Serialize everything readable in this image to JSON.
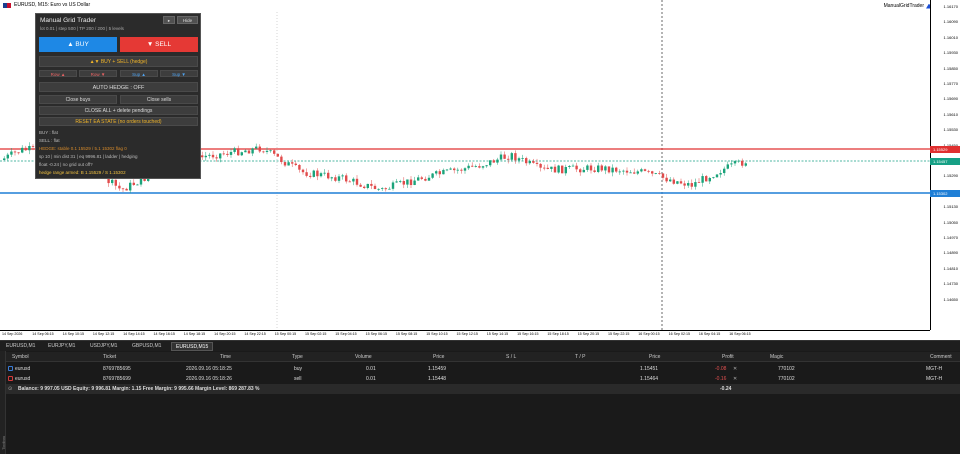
{
  "chart": {
    "symbol_title": "EURUSD, M15: Euro vs US Dollar",
    "ea_name": "ManualGridTrader",
    "price_ticks": [
      "1.16170",
      "1.16090",
      "1.16010",
      "1.15930",
      "1.15850",
      "1.15770",
      "1.15690",
      "1.15610",
      "1.15530",
      "1.15450",
      "1.15370",
      "1.15290",
      "1.15210",
      "1.15130",
      "1.15050",
      "1.14970",
      "1.14890",
      "1.14810",
      "1.14730",
      "1.14650"
    ],
    "badge_red": "1.15529",
    "badge_teal": "1.15457",
    "badge_blue": "1.15302",
    "time_ticks": [
      "14 Sep 2026",
      "14 Sep 06:15",
      "14 Sep 10:15",
      "14 Sep 12:15",
      "14 Sep 14:15",
      "14 Sep 16:15",
      "14 Sep 18:15",
      "14 Sep 20:15",
      "14 Sep 22:15",
      "15 Sep 00:15",
      "15 Sep 02:15",
      "15 Sep 04:15",
      "15 Sep 06:15",
      "15 Sep 08:15",
      "15 Sep 10:15",
      "15 Sep 12:15",
      "15 Sep 14:15",
      "15 Sep 16:15",
      "15 Sep 18:15",
      "15 Sep 20:15",
      "15 Sep 22:15",
      "16 Sep 00:15",
      "16 Sep 02:15",
      "16 Sep 04:15",
      "16 Sep 06:15"
    ],
    "colors": {
      "red_line": "#e03030",
      "blue_line": "#1f7fd6",
      "teal_line": "#16a085",
      "bull": "#1aa37a",
      "bear": "#e14b4b"
    }
  },
  "panel": {
    "title": "Manual Grid Trader",
    "subtitle": "lot 0.01 | step 500 | TP 200 / 200 | 5 levels",
    "play_btn": "▸",
    "hide_btn": "Hide",
    "buy_label": "▲ BUY",
    "sell_label": "▼ SELL",
    "hedge_label": "▲▼ BUY + SELL (hedge)",
    "mini_btns": [
      "Row ▲",
      "Row ▼",
      "Sup ▲",
      "Sup ▼"
    ],
    "auto_hedge": "AUTO HEDGE : OFF",
    "close_buys": "Close buys",
    "close_sells": "Close sells",
    "close_all": "CLOSE ALL + delete pendings",
    "reset": "RESET EA STATE (no orders touched)",
    "status": [
      "BUY : flat",
      "SELL : flat",
      "HEDGE: stable 0.1 15529 / 5.1 15302 flag 0",
      "sp 10 | min dist 31 | eq 9996.81 | ladder | hedging",
      "float -0.24 | no grid out off?",
      "hedge range armed: B 1.15529 / S 1.15302"
    ]
  },
  "tabs": [
    "EURUSD,M1",
    "EURJPY,M1",
    "USDJPY,M1",
    "GBPUSD,M1",
    "EURUSD,M15"
  ],
  "terminal": {
    "side_label": "Toolbox",
    "columns": [
      "Symbol",
      "Ticket",
      "Time",
      "Type",
      "Volume",
      "Price",
      "S / L",
      "T / P",
      "Price",
      "Profit",
      "Magic",
      "Comment"
    ],
    "rows": [
      {
        "symbol": "eurusd",
        "ticket": "8769785695",
        "time": "2026.09.16 05:18:25",
        "type": "buy",
        "volume": "0.01",
        "price": "1.15459",
        "sl": "",
        "tp": "",
        "cur": "1.15451",
        "profit": "-0.08",
        "magic": "770102",
        "comment": "MGT-H"
      },
      {
        "symbol": "eurusd",
        "ticket": "8769785699",
        "time": "2026.09.16 05:18:26",
        "type": "sell",
        "volume": "0.01",
        "price": "1.15448",
        "sl": "",
        "tp": "",
        "cur": "1.15464",
        "profit": "-0.16",
        "magic": "770102",
        "comment": "MGT-H"
      }
    ],
    "balance_line": "Balance: 9 997.05 USD  Equity: 9 996.81  Margin: 1.15  Free Margin: 9 995.66  Margin Level: 869 287.83 %",
    "total_profit": "-0.24"
  }
}
